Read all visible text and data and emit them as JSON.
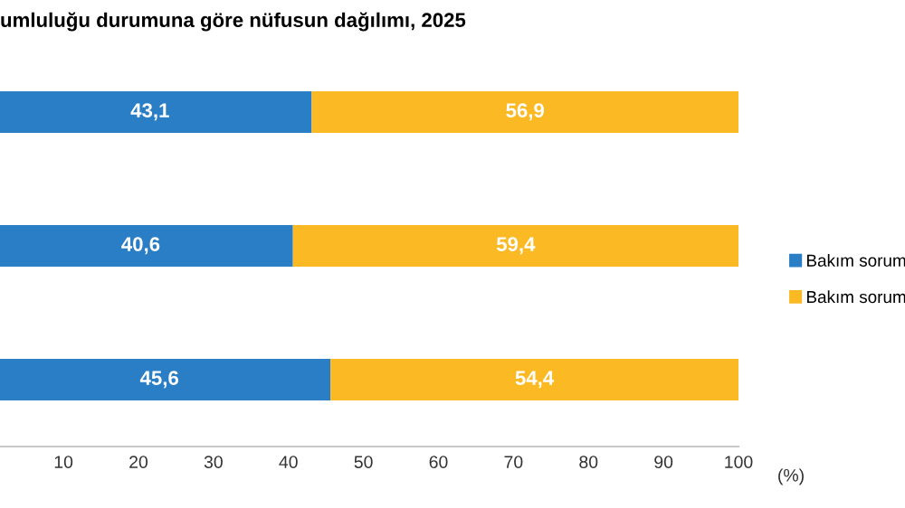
{
  "chart_data": {
    "type": "bar",
    "orientation": "horizontal",
    "stacked": true,
    "title": "umluluğu durumuna göre nüfusun dağılımı, 2025",
    "xlabel": "(%)",
    "categories": [
      null,
      null,
      null
    ],
    "series": [
      {
        "name": "Bakım sorum",
        "color": "#2a7ec6",
        "values": [
          43.1,
          40.6,
          45.6
        ],
        "value_labels": [
          "43,1",
          "40,6",
          "45,6"
        ]
      },
      {
        "name": "Bakım sorum",
        "color": "#fbb924",
        "values": [
          56.9,
          59.4,
          54.4
        ],
        "value_labels": [
          "56,9",
          "59,4",
          "54,4"
        ]
      }
    ],
    "xlim": [
      0,
      100
    ],
    "xticks": [
      10,
      20,
      30,
      40,
      50,
      60,
      70,
      80,
      90,
      100
    ],
    "grid": false,
    "legend": "right"
  }
}
